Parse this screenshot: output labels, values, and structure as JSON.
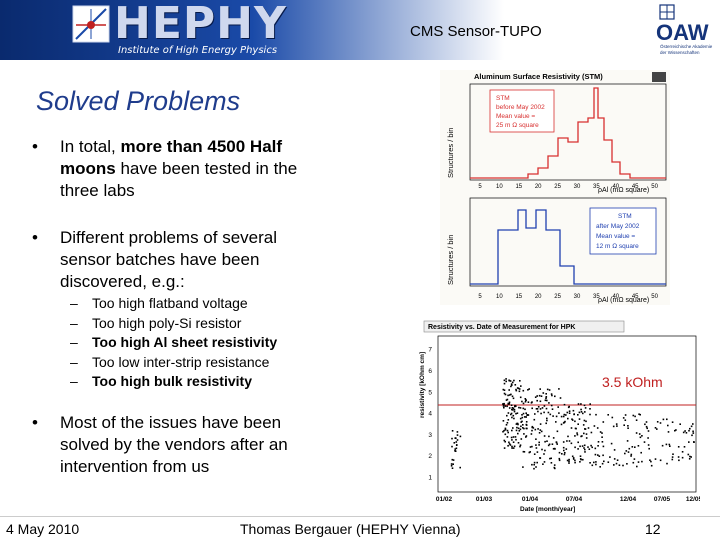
{
  "header": {
    "logo_text": "HEPHY",
    "logo_subtitle": "Institute of High Energy Physics",
    "title": "CMS Sensor-TUPO",
    "oaw_text": "OAW",
    "oaw_sub1": "Österreichische Akademie",
    "oaw_sub2": "der Wissenschaften"
  },
  "slide": {
    "title": "Solved Problems",
    "bullets": [
      {
        "symbol": "•",
        "lines": [
          [
            "In total, ",
            "more than 4500 Half"
          ],
          [
            "moons",
            " have been tested in the"
          ],
          [
            "three labs"
          ]
        ]
      },
      {
        "symbol": "•",
        "lines": [
          [
            "Different problems of several"
          ],
          [
            "sensor batches have been"
          ],
          [
            "discovered, e.g.:"
          ]
        ]
      },
      {
        "symbol": "•",
        "lines": [
          [
            "Most of the issues have been"
          ],
          [
            "solved by the vendors after an"
          ],
          [
            "intervention from us"
          ]
        ]
      }
    ],
    "sub_items": [
      {
        "dash": "–",
        "text": "Too high flatband voltage",
        "bold": false
      },
      {
        "dash": "–",
        "text": "Too high poly-Si resistor",
        "bold": false
      },
      {
        "dash": "–",
        "text": "Too high Al sheet resistivity",
        "bold": true
      },
      {
        "dash": "–",
        "text": "Too low inter-strip resistance",
        "bold": false
      },
      {
        "dash": "–",
        "text": "Too high bulk resistivity",
        "bold": true
      }
    ]
  },
  "stm_plot": {
    "title": "Aluminum Surface Resistivity (STM)",
    "ylabel": "Structures / bin",
    "xlabel": "ρAl (mΩ square)",
    "ticks": [
      "5",
      "10",
      "15",
      "20",
      "25",
      "30",
      "35",
      "40",
      "45",
      "50"
    ],
    "upper_legend": [
      "STM",
      "before May 2002",
      "Mean value =",
      "25 m Ω square"
    ],
    "lower_legend": [
      "STM",
      "after May 2002",
      "Mean value =",
      "12 m Ω square"
    ]
  },
  "resist_plot": {
    "title": "Resistivity vs. Date of Measurement for HPK",
    "ylabel": "resistivity [kOhm cm]",
    "xlabel": "Date [month/year]",
    "xticks": [
      "01/02",
      "01/03",
      "01/04",
      "07/04",
      "12/04",
      "07/05",
      "12/05"
    ],
    "yticks": [
      "1",
      "2",
      "3",
      "4",
      "5",
      "6",
      "7"
    ],
    "threshold_label": "3.5 kOhm"
  },
  "footer": {
    "date": "4 May 2010",
    "center": "Thomas Bergauer (HEPHY Vienna)",
    "page": "12"
  },
  "colors": {
    "title_blue": "#1f3c8c",
    "header_blue": "#0a2a6e",
    "stm_red": "#d83030",
    "stm_blue": "#2040b0",
    "threshold_red": "#c02020"
  }
}
